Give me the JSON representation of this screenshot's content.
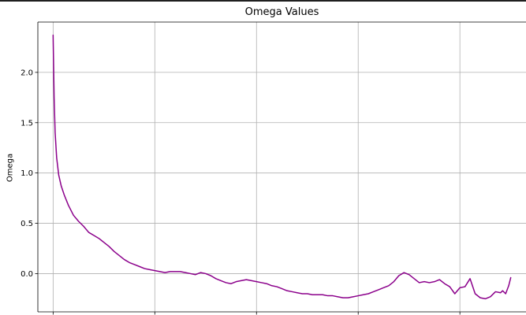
{
  "chart_data": {
    "type": "line",
    "title": "Omega Values",
    "xlabel": "",
    "ylabel": "Omega",
    "ylim": [
      -0.38,
      2.5
    ],
    "xlim": [
      -1.5,
      46.5
    ],
    "grid": true,
    "y_ticks": [
      0.0,
      0.5,
      1.0,
      1.5,
      2.0
    ],
    "y_tick_labels": [
      "0.0",
      "0.5",
      "1.0",
      "1.5",
      "2.0"
    ],
    "x_ticks": [
      0,
      10,
      20,
      30,
      40
    ],
    "series": [
      {
        "color": "#8b008b",
        "x": [
          0,
          0.1,
          0.2,
          0.35,
          0.55,
          0.8,
          1.1,
          1.5,
          2.0,
          2.5,
          3.0,
          3.5,
          4.0,
          4.5,
          5.0,
          5.5,
          6.0,
          6.5,
          7.0,
          7.5,
          8.0,
          8.5,
          9.0,
          9.5,
          10.0,
          10.5,
          11.0,
          11.5,
          12.0,
          12.5,
          13.0,
          13.5,
          14.0,
          14.5,
          15.0,
          15.5,
          16.0,
          16.5,
          17.0,
          17.5,
          18.0,
          18.5,
          19.0,
          19.5,
          20.0,
          20.5,
          21.0,
          21.5,
          22.0,
          22.5,
          23.0,
          23.5,
          24.0,
          24.5,
          25.0,
          25.5,
          26.0,
          26.5,
          27.0,
          27.5,
          28.0,
          28.5,
          29.0,
          29.5,
          30.0,
          30.5,
          31.0,
          31.5,
          32.0,
          32.5,
          33.0,
          33.5,
          34.0,
          34.5,
          35.0,
          35.5,
          36.0,
          36.5,
          37.0,
          37.5,
          38.0,
          38.5,
          39.0,
          39.5,
          40.0,
          40.5,
          41.0,
          41.5,
          42.0,
          42.5,
          43.0,
          43.5,
          44.0,
          44.2,
          44.5,
          44.8,
          45.0
        ],
        "values": [
          2.37,
          1.75,
          1.4,
          1.15,
          0.98,
          0.87,
          0.78,
          0.68,
          0.58,
          0.52,
          0.47,
          0.41,
          0.38,
          0.35,
          0.31,
          0.27,
          0.22,
          0.18,
          0.14,
          0.11,
          0.09,
          0.07,
          0.05,
          0.04,
          0.03,
          0.02,
          0.01,
          0.02,
          0.02,
          0.02,
          0.01,
          0.0,
          -0.01,
          0.01,
          0.0,
          -0.02,
          -0.05,
          -0.07,
          -0.09,
          -0.1,
          -0.08,
          -0.07,
          -0.06,
          -0.07,
          -0.08,
          -0.09,
          -0.1,
          -0.12,
          -0.13,
          -0.15,
          -0.17,
          -0.18,
          -0.19,
          -0.2,
          -0.2,
          -0.21,
          -0.21,
          -0.21,
          -0.22,
          -0.22,
          -0.23,
          -0.24,
          -0.24,
          -0.23,
          -0.22,
          -0.21,
          -0.2,
          -0.18,
          -0.16,
          -0.14,
          -0.12,
          -0.08,
          -0.02,
          0.01,
          -0.01,
          -0.05,
          -0.09,
          -0.08,
          -0.09,
          -0.08,
          -0.06,
          -0.1,
          -0.13,
          -0.2,
          -0.14,
          -0.13,
          -0.05,
          -0.2,
          -0.24,
          -0.25,
          -0.23,
          -0.18,
          -0.19,
          -0.17,
          -0.2,
          -0.12,
          -0.04
        ]
      }
    ]
  }
}
